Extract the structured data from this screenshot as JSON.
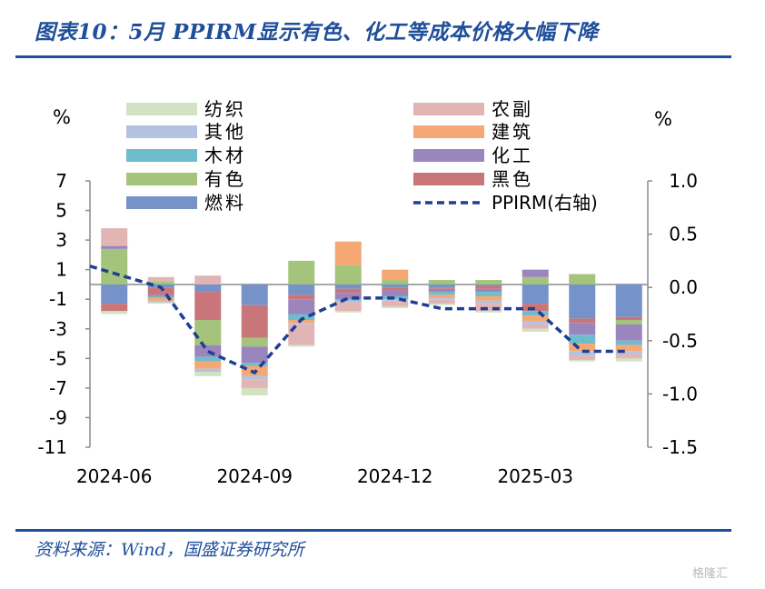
{
  "title": "图表10：5月 PPIRM显示有色、化工等成本价格大幅下降",
  "source": "资料来源：Wind，国盛证券研究所",
  "watermark": "格隆汇",
  "chart_data": {
    "type": "bar",
    "stacked": true,
    "categories": [
      "2024-06",
      "2024-07",
      "2024-08",
      "2024-09",
      "2024-10",
      "2024-11",
      "2024-12",
      "2025-01",
      "2025-02",
      "2025-03",
      "2025-04",
      "2025-05"
    ],
    "x_tick_labels": [
      "2024-06",
      "2024-09",
      "2024-12",
      "2025-03"
    ],
    "y_left": {
      "unit": "%",
      "ylim": [
        -11,
        7
      ],
      "ticks": [
        7,
        5,
        3,
        1,
        -1,
        -3,
        -5,
        -7,
        -9,
        -11
      ]
    },
    "y_right": {
      "unit": "%",
      "ylim": [
        -1.5,
        1.0
      ],
      "ticks": [
        "1.0",
        "0.5",
        "0.0",
        "-0.5",
        "-1.0",
        "-1.5"
      ]
    },
    "series": [
      {
        "name": "燃料",
        "color": "#7593c9",
        "values": [
          -1.3,
          -0.2,
          -0.5,
          -1.4,
          -0.7,
          -0.3,
          -0.2,
          -0.2,
          -0.1,
          -1.3,
          -2.3,
          -2.2
        ]
      },
      {
        "name": "黑色",
        "color": "#c9767a",
        "values": [
          -0.5,
          -0.5,
          -1.9,
          -2.2,
          -0.3,
          -0.3,
          -0.2,
          -0.1,
          -0.2,
          -0.5,
          -0.3,
          -0.2
        ]
      },
      {
        "name": "有色",
        "color": "#a3c47a",
        "values": [
          2.4,
          0.2,
          -1.7,
          -0.6,
          1.6,
          1.3,
          0.3,
          0.3,
          0.3,
          0.5,
          0.7,
          -0.3
        ]
      },
      {
        "name": "化工",
        "color": "#9b85bd",
        "values": [
          0.2,
          -0.1,
          -0.8,
          -1.1,
          -1.0,
          -0.4,
          -0.4,
          -0.2,
          -0.2,
          0.5,
          -0.8,
          -1.1
        ]
      },
      {
        "name": "木材",
        "color": "#6fbccb",
        "values": [
          0.0,
          -0.1,
          -0.3,
          -0.2,
          -0.4,
          -0.1,
          -0.2,
          -0.2,
          -0.3,
          -0.3,
          -0.6,
          -0.3
        ]
      },
      {
        "name": "建筑",
        "color": "#f5a774",
        "values": [
          0.0,
          -0.2,
          -0.5,
          -0.7,
          -0.2,
          1.6,
          0.7,
          -0.2,
          -0.3,
          -0.4,
          -0.5,
          -0.4
        ]
      },
      {
        "name": "其他",
        "color": "#b3c2e1",
        "values": [
          0.0,
          -0.1,
          -0.2,
          -0.2,
          -0.1,
          -0.1,
          -0.1,
          -0.1,
          -0.2,
          -0.2,
          -0.3,
          -0.2
        ]
      },
      {
        "name": "农副",
        "color": "#e2b5b5",
        "values": [
          1.2,
          0.3,
          0.6,
          -0.6,
          -1.4,
          -0.6,
          -0.4,
          -0.3,
          -0.5,
          -0.3,
          -0.3,
          -0.3
        ]
      },
      {
        "name": "纺织",
        "color": "#d3e2c2",
        "values": [
          -0.2,
          -0.1,
          -0.3,
          -0.5,
          -0.1,
          -0.1,
          -0.1,
          -0.1,
          -0.1,
          -0.2,
          -0.1,
          -0.2
        ]
      }
    ],
    "legend_order": [
      "纺织",
      "农副",
      "其他",
      "建筑",
      "木材",
      "化工",
      "有色",
      "黑色",
      "燃料",
      "PPIRM(右轴)"
    ],
    "line": {
      "name": "PPIRM(右轴)",
      "axis": "right",
      "color": "#1f3f92",
      "values": [
        0.2,
        0.0,
        -0.6,
        -0.8,
        -0.3,
        -0.1,
        -0.1,
        -0.2,
        -0.2,
        -0.2,
        -0.6,
        -0.6
      ]
    },
    "legend_placement": "top",
    "grid": false
  }
}
